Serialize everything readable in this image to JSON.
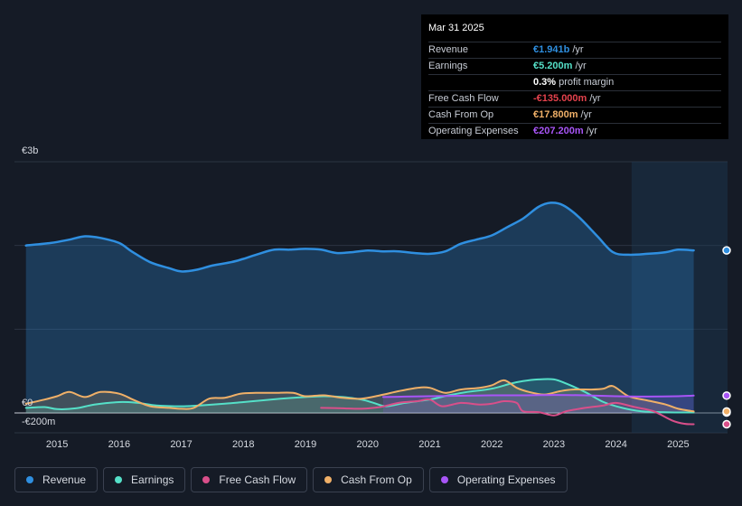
{
  "chart_data": {
    "type": "area",
    "y_unit": "€m",
    "ylim": [
      -200,
      3000
    ],
    "y_tick_labels": [
      {
        "value": 3000,
        "label": "€3b"
      },
      {
        "value": 0,
        "label": "€0"
      },
      {
        "value": -200,
        "label": "-€200m"
      }
    ],
    "x_ticks": [
      2015,
      2016,
      2017,
      2018,
      2019,
      2020,
      2021,
      2022,
      2023,
      2024,
      2025
    ],
    "xlim": [
      2014.3,
      2025.3
    ],
    "forecast_shade_start": 2024.25,
    "series": [
      {
        "name": "Revenue",
        "color": "#2f8fe0",
        "fill": true,
        "x": [
          2014.5,
          2014.9,
          2015.2,
          2015.45,
          2015.7,
          2016.0,
          2016.2,
          2016.5,
          2016.8,
          2017.0,
          2017.25,
          2017.5,
          2017.8,
          2018.0,
          2018.25,
          2018.5,
          2018.75,
          2019.0,
          2019.25,
          2019.5,
          2019.75,
          2020.0,
          2020.25,
          2020.5,
          2020.75,
          2021.0,
          2021.25,
          2021.5,
          2021.75,
          2022.0,
          2022.25,
          2022.5,
          2022.75,
          2022.95,
          2023.15,
          2023.4,
          2023.7,
          2023.95,
          2024.2,
          2024.5,
          2024.8,
          2025.0,
          2025.25
        ],
        "values": [
          2000,
          2030,
          2070,
          2110,
          2090,
          2030,
          1930,
          1800,
          1730,
          1690,
          1710,
          1760,
          1800,
          1840,
          1900,
          1950,
          1950,
          1960,
          1950,
          1910,
          1920,
          1940,
          1930,
          1930,
          1910,
          1900,
          1930,
          2020,
          2070,
          2120,
          2220,
          2320,
          2460,
          2510,
          2480,
          2340,
          2110,
          1920,
          1890,
          1900,
          1920,
          1950,
          1941
        ]
      },
      {
        "name": "Earnings",
        "color": "#55e0c8",
        "fill": true,
        "x": [
          2014.5,
          2014.8,
          2015.0,
          2015.3,
          2015.6,
          2016.0,
          2016.3,
          2016.6,
          2017.0,
          2017.3,
          2017.7,
          2018.0,
          2018.3,
          2018.6,
          2019.0,
          2019.3,
          2019.6,
          2019.9,
          2020.1,
          2020.3,
          2020.6,
          2021.0,
          2021.3,
          2021.6,
          2022.0,
          2022.3,
          2022.5,
          2022.75,
          2023.0,
          2023.2,
          2023.5,
          2023.8,
          2024.1,
          2024.4,
          2024.7,
          2025.0,
          2025.25
        ],
        "values": [
          60,
          70,
          45,
          55,
          100,
          130,
          120,
          90,
          80,
          90,
          110,
          130,
          150,
          170,
          190,
          200,
          190,
          160,
          120,
          80,
          120,
          160,
          210,
          250,
          290,
          350,
          380,
          400,
          400,
          350,
          250,
          130,
          60,
          20,
          10,
          5,
          5
        ]
      },
      {
        "name": "Free Cash Flow",
        "color": "#d94f8a",
        "fill": false,
        "x": [
          2019.25,
          2019.6,
          2019.9,
          2020.2,
          2020.5,
          2020.8,
          2021.0,
          2021.2,
          2021.5,
          2021.8,
          2022.0,
          2022.2,
          2022.4,
          2022.5,
          2022.75,
          2023.0,
          2023.2,
          2023.5,
          2023.8,
          2024.0,
          2024.3,
          2024.6,
          2024.9,
          2025.1,
          2025.25
        ],
        "values": [
          60,
          55,
          50,
          70,
          120,
          140,
          160,
          80,
          120,
          100,
          110,
          140,
          120,
          20,
          10,
          -30,
          20,
          60,
          90,
          120,
          70,
          20,
          -90,
          -130,
          -135
        ]
      },
      {
        "name": "Cash From Op",
        "color": "#f0b068",
        "fill": true,
        "x": [
          2014.5,
          2014.8,
          2015.0,
          2015.2,
          2015.45,
          2015.7,
          2016.0,
          2016.25,
          2016.5,
          2016.8,
          2017.0,
          2017.2,
          2017.45,
          2017.7,
          2017.95,
          2018.2,
          2018.5,
          2018.8,
          2019.0,
          2019.3,
          2019.6,
          2019.9,
          2020.2,
          2020.5,
          2020.8,
          2021.0,
          2021.25,
          2021.5,
          2021.8,
          2022.0,
          2022.2,
          2022.4,
          2022.6,
          2022.85,
          2023.1,
          2023.3,
          2023.6,
          2023.8,
          2023.95,
          2024.2,
          2024.5,
          2024.8,
          2025.0,
          2025.25
        ],
        "values": [
          110,
          160,
          200,
          250,
          190,
          250,
          230,
          150,
          80,
          60,
          50,
          60,
          170,
          180,
          230,
          240,
          240,
          240,
          200,
          210,
          180,
          170,
          210,
          260,
          300,
          300,
          240,
          280,
          300,
          330,
          390,
          300,
          250,
          220,
          260,
          280,
          280,
          290,
          320,
          200,
          150,
          100,
          50,
          18
        ]
      },
      {
        "name": "Operating Expenses",
        "color": "#a855f7",
        "fill": true,
        "x": [
          2020.25,
          2020.6,
          2021.0,
          2021.5,
          2022.0,
          2022.5,
          2023.0,
          2023.5,
          2024.0,
          2024.5,
          2025.0,
          2025.25
        ],
        "values": [
          190,
          195,
          200,
          205,
          210,
          210,
          215,
          210,
          200,
          195,
          200,
          207
        ]
      }
    ]
  },
  "tooltip": {
    "date": "Mar 31 2025",
    "rows": [
      {
        "label": "Revenue",
        "value": "€1.941b",
        "unit": "/yr",
        "color": "#2f8fe0"
      },
      {
        "label": "Earnings",
        "value": "€5.200m",
        "unit": "/yr",
        "color": "#55e0c8"
      },
      {
        "label": "",
        "value": "0.3%",
        "unit": "profit margin",
        "color": "#ffffff"
      },
      {
        "label": "Free Cash Flow",
        "value": "-€135.000m",
        "unit": "/yr",
        "color": "#e5424d"
      },
      {
        "label": "Cash From Op",
        "value": "€17.800m",
        "unit": "/yr",
        "color": "#f0b068"
      },
      {
        "label": "Operating Expenses",
        "value": "€207.200m",
        "unit": "/yr",
        "color": "#a855f7"
      }
    ]
  },
  "legend": [
    {
      "label": "Revenue",
      "color": "#2f8fe0"
    },
    {
      "label": "Earnings",
      "color": "#55e0c8"
    },
    {
      "label": "Free Cash Flow",
      "color": "#d94f8a"
    },
    {
      "label": "Cash From Op",
      "color": "#f0b068"
    },
    {
      "label": "Operating Expenses",
      "color": "#a855f7"
    }
  ]
}
